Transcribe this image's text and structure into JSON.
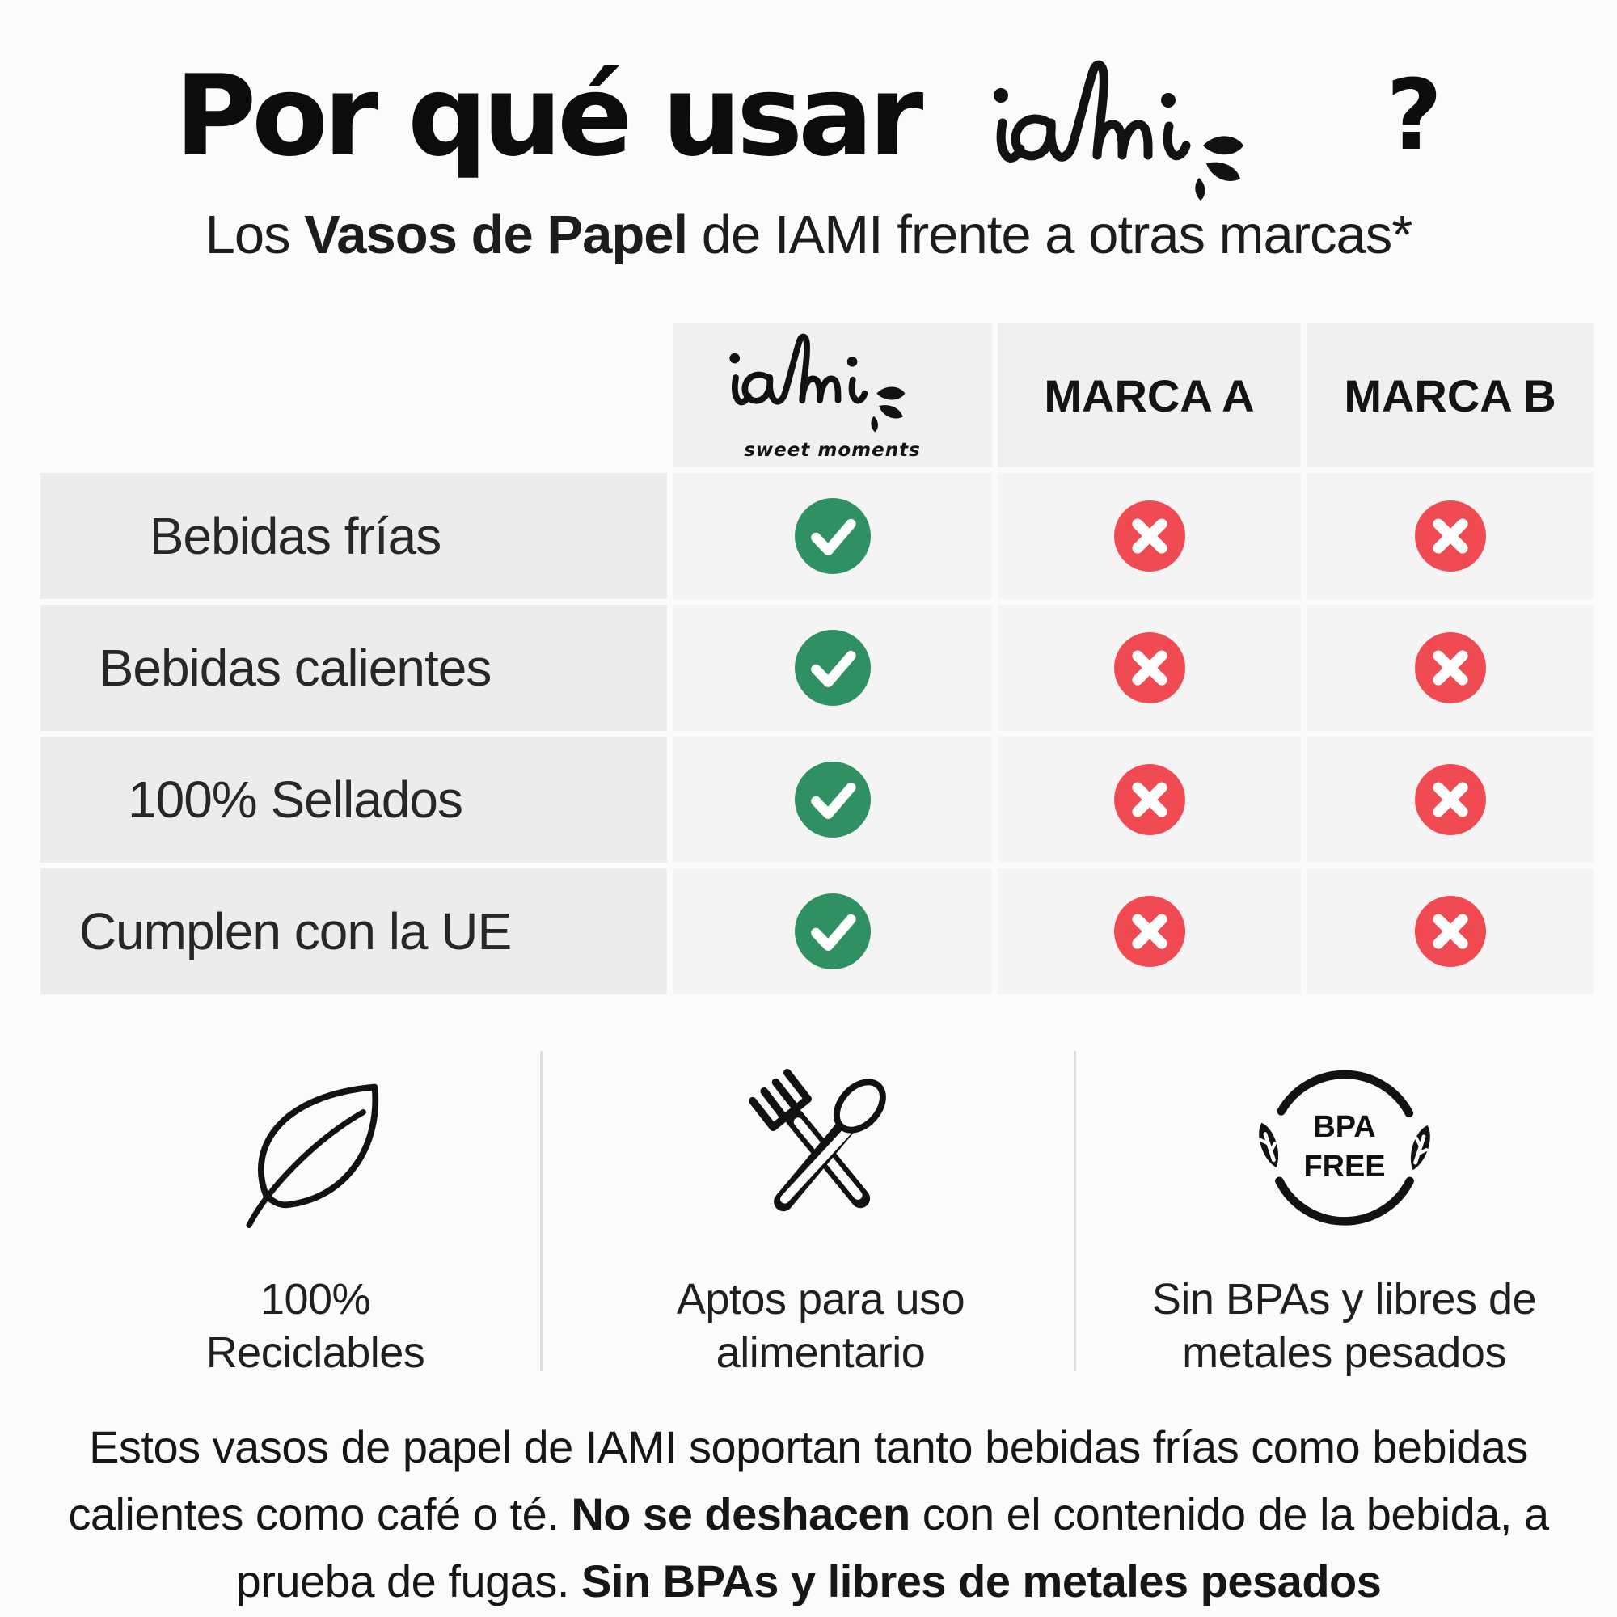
{
  "colors": {
    "check_green": "#2f9162",
    "cross_red": "#f04a52",
    "divider": "#dcdcdc"
  },
  "title": {
    "prefix": "Por qué usar",
    "brand": "iami",
    "question_mark": "?"
  },
  "subtitle": {
    "segments": [
      {
        "text": "Los ",
        "bold": false
      },
      {
        "text": "Vasos de Papel",
        "bold": true
      },
      {
        "text": " de IAMI frente a otras marcas*",
        "bold": false
      }
    ]
  },
  "comparison_table": {
    "brand_column": {
      "name": "iami",
      "tagline": "sweet moments"
    },
    "columns": [
      "MARCA A",
      "MARCA B"
    ],
    "rows": [
      {
        "label": "Bebidas frías",
        "values": [
          "check",
          "cross",
          "cross"
        ]
      },
      {
        "label": "Bebidas calientes",
        "values": [
          "check",
          "cross",
          "cross"
        ]
      },
      {
        "label": "100% Sellados",
        "values": [
          "check",
          "cross",
          "cross"
        ]
      },
      {
        "label": "Cumplen con la UE",
        "values": [
          "check",
          "cross",
          "cross"
        ]
      }
    ]
  },
  "features": [
    {
      "icon": "leaf-icon",
      "lines": [
        "100%",
        "Reciclables"
      ]
    },
    {
      "icon": "cutlery-icon",
      "lines": [
        "Aptos para uso",
        "alimentario"
      ]
    },
    {
      "icon": "bpa-free-icon",
      "badge_lines": [
        "BPA",
        "FREE"
      ],
      "lines": [
        "Sin BPAs y libres de",
        "metales pesados"
      ]
    }
  ],
  "footer": {
    "segments": [
      {
        "text": "Estos vasos de papel de IAMI soportan tanto bebidas frías como bebidas calientes como café o té. ",
        "bold": false
      },
      {
        "text": "No se deshacen",
        "bold": true
      },
      {
        "text": " con el contenido de la bebida, a prueba de fugas. ",
        "bold": false
      },
      {
        "text": "Sin BPAs y libres de metales pesados",
        "bold": true
      }
    ]
  }
}
